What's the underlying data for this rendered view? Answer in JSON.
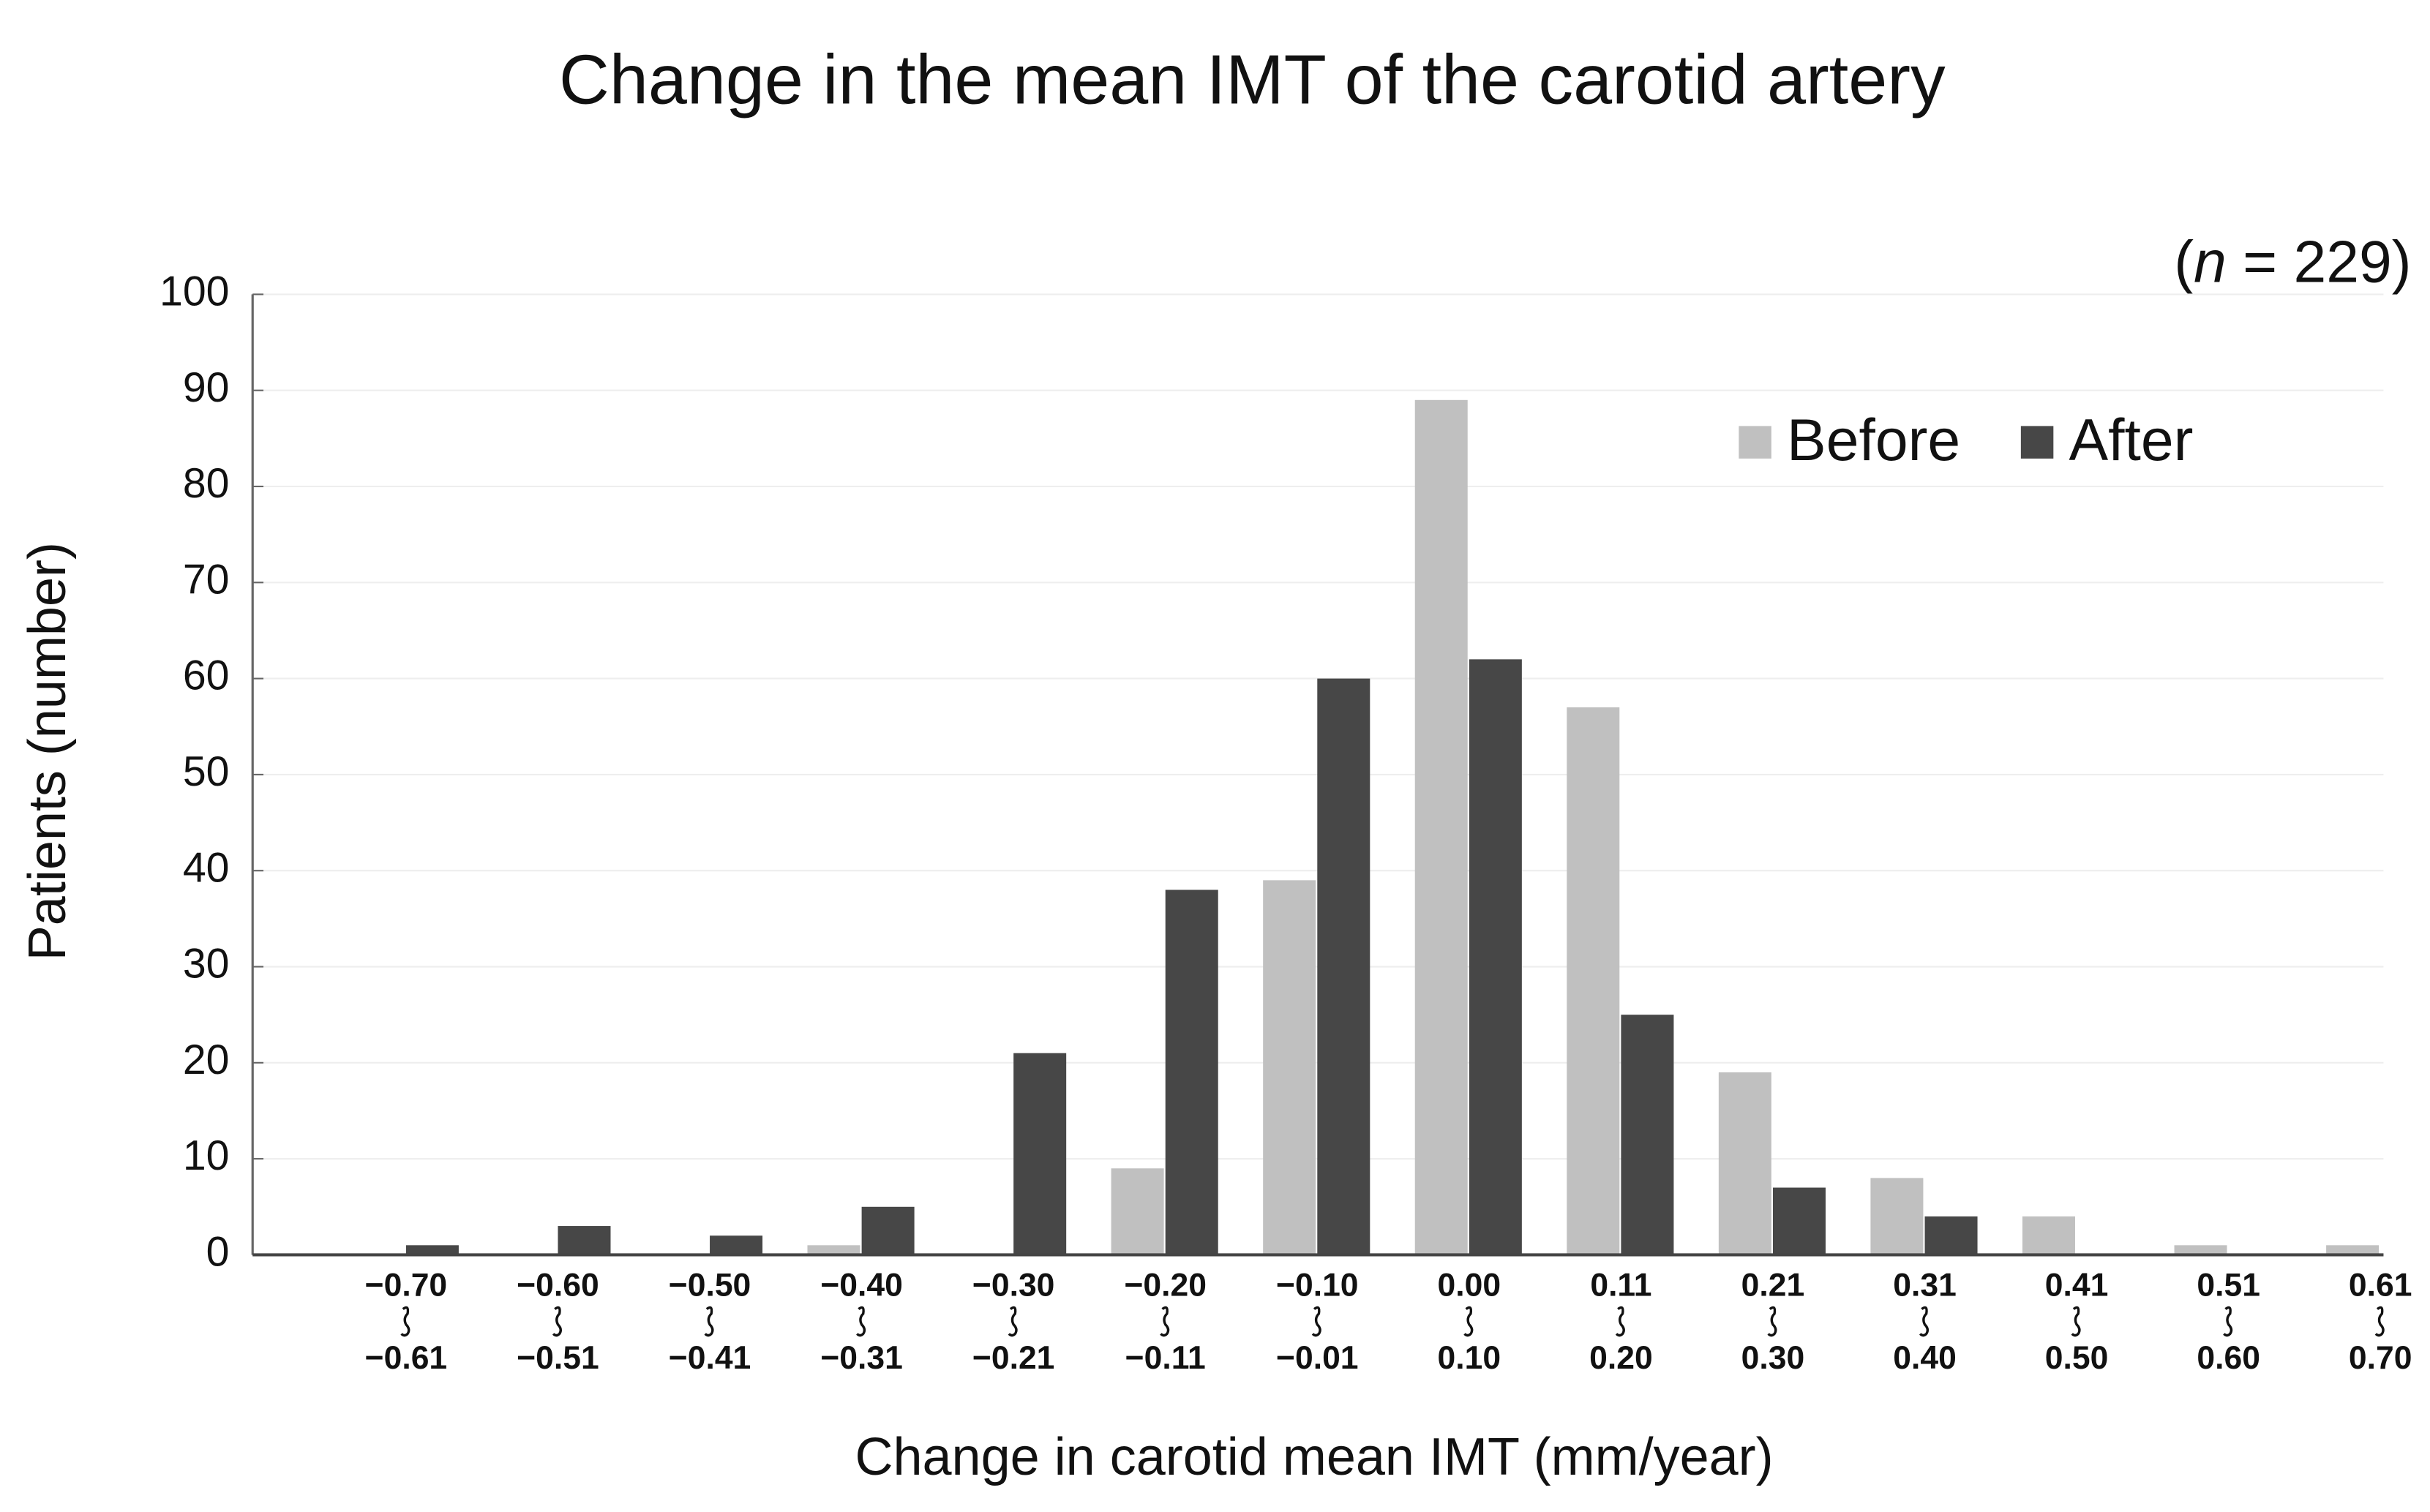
{
  "chart_data": {
    "type": "bar",
    "title": "Change in the mean IMT of the carotid artery",
    "annotation": [
      "(",
      "n",
      " = 229)"
    ],
    "x_label": "Change in carotid mean IMT (mm/year)",
    "y_label": "Patients (number)",
    "categories": [
      [
        "−0.70",
        "−0.61"
      ],
      [
        "−0.60",
        "−0.51"
      ],
      [
        "−0.50",
        "−0.41"
      ],
      [
        "−0.40",
        "−0.31"
      ],
      [
        "−0.30",
        "−0.21"
      ],
      [
        "−0.20",
        "−0.11"
      ],
      [
        "−0.10",
        "−0.01"
      ],
      [
        "0.00",
        "0.10"
      ],
      [
        "0.11",
        "0.20"
      ],
      [
        "0.21",
        "0.30"
      ],
      [
        "0.31",
        "0.40"
      ],
      [
        "0.41",
        "0.50"
      ],
      [
        "0.51",
        "0.60"
      ],
      [
        "0.61",
        "0.70"
      ]
    ],
    "series": [
      {
        "name": "Before",
        "color": "#c0c0c0",
        "values": [
          0,
          0,
          0,
          1,
          0,
          9,
          39,
          89,
          57,
          19,
          8,
          4,
          1,
          1
        ]
      },
      {
        "name": "After",
        "color": "#474747",
        "values": [
          1,
          3,
          2,
          5,
          21,
          38,
          60,
          62,
          25,
          7,
          4,
          0,
          0,
          0
        ]
      }
    ],
    "ylim": [
      0,
      100
    ],
    "yticks": [
      0,
      10,
      20,
      30,
      40,
      50,
      60,
      70,
      80,
      90,
      100
    ],
    "grid": true
  }
}
